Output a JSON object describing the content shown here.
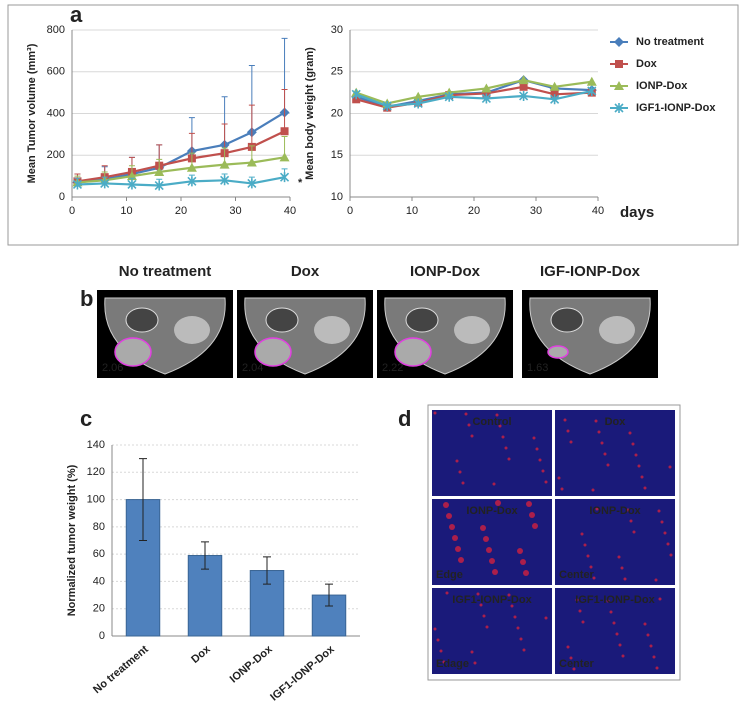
{
  "chart_data": [
    {
      "type": "line",
      "panel": "a",
      "ylabel": "Mean Tumor volume (mm³)",
      "annotation": "*",
      "x": [
        1,
        6,
        11,
        16,
        22,
        28,
        33,
        39
      ],
      "xlim": [
        0,
        40
      ],
      "xticks": [
        0,
        10,
        20,
        30,
        40
      ],
      "ylim": [
        0,
        800
      ],
      "yticks": [
        0,
        200,
        400,
        600,
        800
      ],
      "grid": true,
      "series": [
        {
          "color": "#4a7ebb",
          "marker": "diamond",
          "values": [
            70,
            85,
            110,
            140,
            220,
            250,
            310,
            405
          ],
          "errors": [
            40,
            60,
            80,
            110,
            160,
            230,
            320,
            355
          ]
        },
        {
          "color": "#c0504d",
          "marker": "square",
          "values": [
            75,
            95,
            120,
            150,
            185,
            210,
            240,
            315
          ],
          "errors": [
            35,
            55,
            70,
            100,
            120,
            140,
            200,
            200
          ]
        },
        {
          "color": "#9bbb59",
          "marker": "triangle",
          "values": [
            70,
            80,
            100,
            120,
            140,
            155,
            165,
            190
          ],
          "errors": [
            30,
            40,
            50,
            60,
            70,
            80,
            80,
            100
          ]
        },
        {
          "color": "#4bacc6",
          "marker": "star",
          "values": [
            60,
            65,
            60,
            55,
            75,
            80,
            65,
            95
          ],
          "errors": [
            30,
            30,
            30,
            30,
            30,
            30,
            30,
            40
          ]
        }
      ]
    },
    {
      "type": "line",
      "ylabel": "Mean body weight (gram)",
      "xlabel": "days",
      "legend": "right",
      "x": [
        1,
        6,
        11,
        16,
        22,
        28,
        33,
        39
      ],
      "xlim": [
        0,
        40
      ],
      "xticks": [
        0,
        10,
        20,
        30,
        40
      ],
      "ylim": [
        10,
        30
      ],
      "yticks": [
        10,
        15,
        20,
        25,
        30
      ],
      "grid": true,
      "series": [
        {
          "name": "No  treatment",
          "color": "#4a7ebb",
          "marker": "diamond",
          "values": [
            22,
            20.8,
            21.5,
            22.3,
            22.5,
            24,
            23,
            22.8
          ]
        },
        {
          "name": "Dox",
          "color": "#c0504d",
          "marker": "square",
          "values": [
            21.7,
            20.7,
            21.3,
            22.2,
            22.4,
            23.2,
            22.3,
            22.5
          ]
        },
        {
          "name": "IONP-Dox",
          "color": "#9bbb59",
          "marker": "triangle",
          "values": [
            22.5,
            21.2,
            22,
            22.5,
            23,
            24,
            23.2,
            23.8
          ]
        },
        {
          "name": "IGF1-IONP-Dox",
          "color": "#4bacc6",
          "marker": "star",
          "values": [
            22.3,
            20.9,
            21.2,
            22,
            21.8,
            22.1,
            21.7,
            22.7
          ]
        }
      ]
    },
    {
      "type": "bar",
      "panel": "c",
      "ylabel": "Normalized tumor weight (%)",
      "categories": [
        "No treatment",
        "Dox",
        "IONP-Dox",
        "IGF1-IONP-Dox"
      ],
      "values": [
        100,
        59,
        48,
        30
      ],
      "errors": [
        30,
        10,
        10,
        8
      ],
      "color": "#4f81bd",
      "ylim": [
        0,
        140
      ],
      "yticks": [
        0,
        20,
        40,
        60,
        80,
        100,
        120,
        140
      ],
      "grid": true
    }
  ],
  "mri": {
    "panel": "b",
    "titles": [
      "No treatment",
      "Dox",
      "IONP-Dox",
      "IGF-IONP-Dox"
    ],
    "ratios": [
      2.06,
      2.04,
      2.22,
      1.63
    ]
  },
  "histology": {
    "panel": "d",
    "tiles": [
      {
        "label": "Control"
      },
      {
        "label": "Dox"
      },
      {
        "label": "IONP-Dox",
        "region": "Edge"
      },
      {
        "label": "IONP-Dox",
        "region": "Center"
      },
      {
        "label": "IGF1-IONP-Dox",
        "region": "Edage"
      },
      {
        "label": "IGF1-IONP-Dox",
        "region": "Center"
      }
    ]
  }
}
